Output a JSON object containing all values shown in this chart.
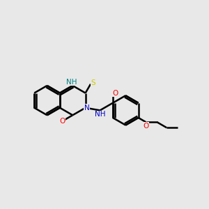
{
  "bg_color": "#e8e8e8",
  "bond_color": "#000000",
  "N_color": "#0000cc",
  "O_color": "#ff0000",
  "S_color": "#cccc00",
  "H_color": "#008080",
  "line_width": 1.8,
  "fig_size": [
    3.0,
    3.0
  ],
  "dpi": 100,
  "BL": 0.72,
  "xlim": [
    0,
    10
  ],
  "ylim": [
    0,
    10
  ],
  "font_size": 7.5
}
